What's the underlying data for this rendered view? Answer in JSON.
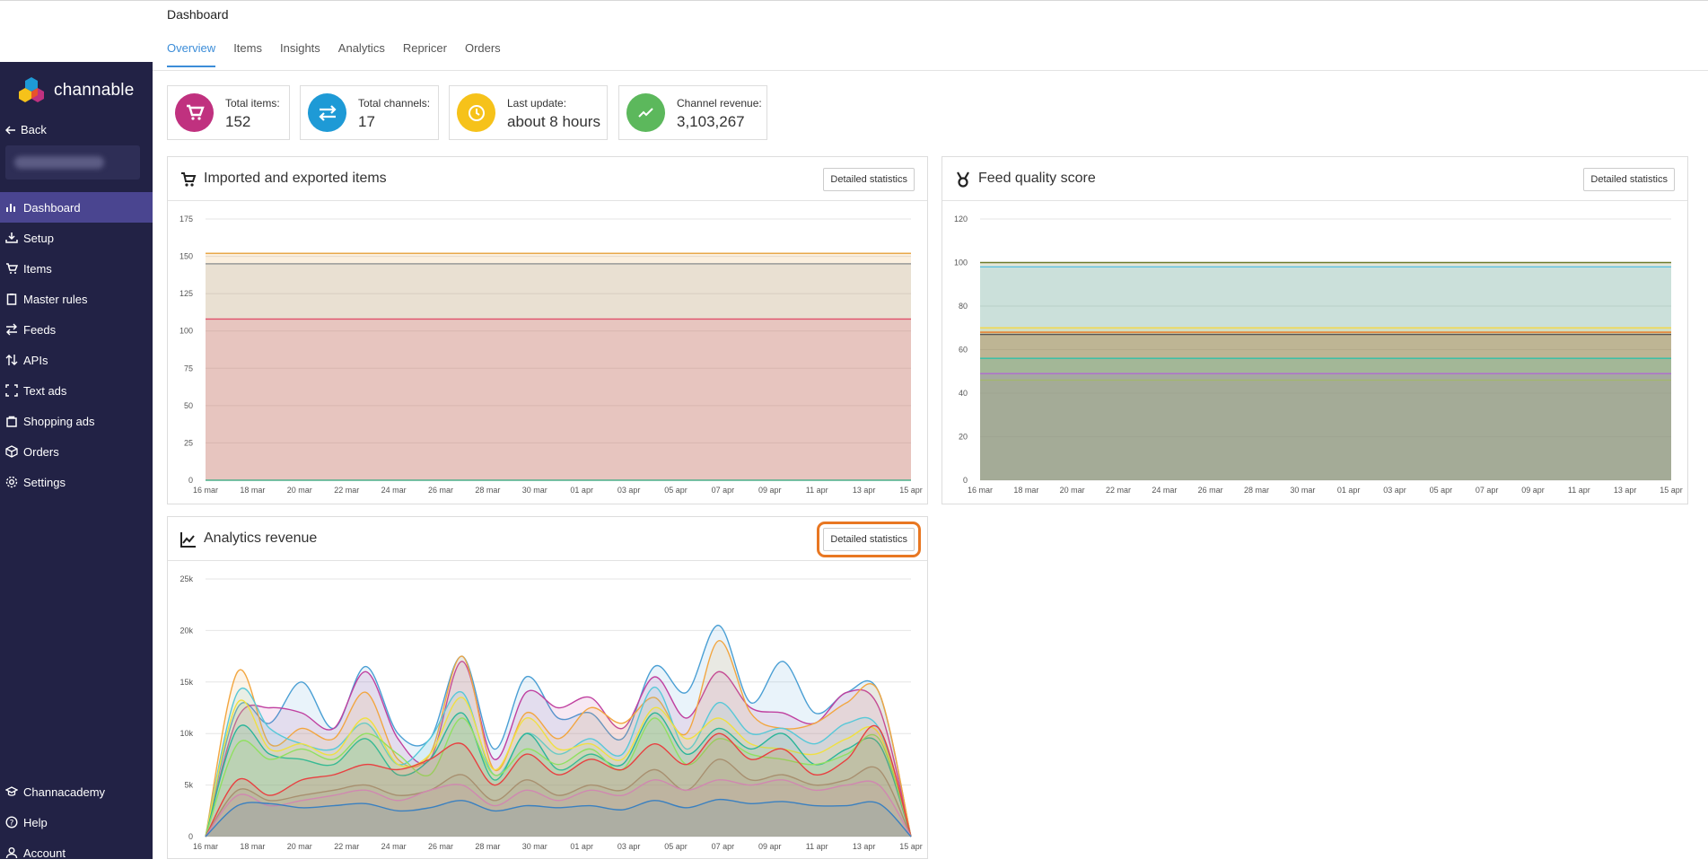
{
  "app": {
    "name": "channable"
  },
  "sidebar": {
    "back_label": "Back",
    "items": [
      {
        "label": "Dashboard",
        "icon": "bar-chart-icon",
        "active": true
      },
      {
        "label": "Setup",
        "icon": "download-tray-icon"
      },
      {
        "label": "Items",
        "icon": "cart-icon"
      },
      {
        "label": "Master rules",
        "icon": "clipboard-icon"
      },
      {
        "label": "Feeds",
        "icon": "swap-arrows-icon"
      },
      {
        "label": "APIs",
        "icon": "up-down-arrows-icon"
      },
      {
        "label": "Text ads",
        "icon": "frame-icon"
      },
      {
        "label": "Shopping ads",
        "icon": "bag-icon"
      },
      {
        "label": "Orders",
        "icon": "box-icon"
      },
      {
        "label": "Settings",
        "icon": "gear-icon"
      }
    ],
    "bottom_items": [
      {
        "label": "Channacademy",
        "icon": "graduation-cap-icon"
      },
      {
        "label": "Help",
        "icon": "help-circle-icon"
      },
      {
        "label": "Account",
        "icon": "user-icon"
      }
    ]
  },
  "header": {
    "title": "Dashboard",
    "tabs": [
      {
        "label": "Overview",
        "active": true
      },
      {
        "label": "Items"
      },
      {
        "label": "Insights"
      },
      {
        "label": "Analytics"
      },
      {
        "label": "Repricer"
      },
      {
        "label": "Orders"
      }
    ]
  },
  "stats": [
    {
      "label": "Total items:",
      "value": "152",
      "color": "#c0317f",
      "icon": "cart-icon"
    },
    {
      "label": "Total channels:",
      "value": "17",
      "color": "#1e9ad6",
      "icon": "swap-arrows-icon"
    },
    {
      "label": "Last update:",
      "value": "about 8 hours",
      "color": "#f6c21a",
      "icon": "clock-icon"
    },
    {
      "label": "Channel revenue:",
      "value": "3,103,267",
      "color": "#5cb85c",
      "icon": "trend-line-icon"
    }
  ],
  "panels": {
    "imported": {
      "title": "Imported and exported items",
      "button": "Detailed statistics",
      "icon": "cart-icon"
    },
    "quality": {
      "title": "Feed quality score",
      "button": "Detailed statistics",
      "icon": "medal-icon"
    },
    "revenue": {
      "title": "Analytics revenue",
      "button": "Detailed statistics",
      "icon": "area-chart-icon"
    }
  },
  "chart_data": [
    {
      "type": "area",
      "ylim": [
        0,
        175
      ],
      "yticks": [
        "0",
        "25",
        "50",
        "75",
        "100",
        "125",
        "150",
        "175"
      ],
      "xticks": [
        "16 mar",
        "18 mar",
        "20 mar",
        "22 mar",
        "24 mar",
        "26 mar",
        "28 mar",
        "30 mar",
        "01 apr",
        "03 apr",
        "05 apr",
        "07 apr",
        "09 apr",
        "11 apr",
        "13 apr",
        "15 apr"
      ],
      "series": [
        {
          "value": 152,
          "color": "#e8a84a"
        },
        {
          "value": 145,
          "color": "#999999"
        },
        {
          "value": 108,
          "color": "#e0506a"
        },
        {
          "value": 0,
          "color": "#4caf8a"
        }
      ]
    },
    {
      "type": "area",
      "ylim": [
        0,
        120
      ],
      "yticks": [
        "0",
        "20",
        "40",
        "60",
        "80",
        "100",
        "120"
      ],
      "xticks": [
        "16 mar",
        "18 mar",
        "20 mar",
        "22 mar",
        "24 mar",
        "26 mar",
        "28 mar",
        "30 mar",
        "01 apr",
        "03 apr",
        "05 apr",
        "07 apr",
        "09 apr",
        "11 apr",
        "13 apr",
        "15 apr"
      ],
      "series": [
        {
          "value": 100,
          "color": "#6d7a2a"
        },
        {
          "value": 98,
          "color": "#5bc0de"
        },
        {
          "value": 70,
          "color": "#f2d94e"
        },
        {
          "value": 68,
          "color": "#e87722"
        },
        {
          "value": 67,
          "color": "#555555"
        },
        {
          "value": 56,
          "color": "#2fc0a8"
        },
        {
          "value": 49,
          "color": "#b06bd0"
        },
        {
          "value": 46,
          "color": "#a3b86c"
        }
      ]
    },
    {
      "type": "area",
      "ylim": [
        0,
        25000
      ],
      "yticks": [
        "0",
        "5k",
        "10k",
        "15k",
        "20k",
        "25k"
      ],
      "xticks": [
        "16 mar",
        "18 mar",
        "20 mar",
        "22 mar",
        "24 mar",
        "26 mar",
        "28 mar",
        "30 mar",
        "01 apr",
        "03 apr",
        "05 apr",
        "07 apr",
        "09 apr",
        "11 apr",
        "13 apr",
        "15 apr"
      ],
      "series": [
        {
          "color": "#4a9fd4",
          "values": [
            0,
            12500,
            11000,
            15000,
            10500,
            16500,
            10000,
            9500,
            17500,
            8500,
            15500,
            11500,
            12000,
            9500,
            16500,
            14000,
            20500,
            13000,
            17000,
            12000,
            14000,
            14000,
            0
          ]
        },
        {
          "color": "#c040a0",
          "values": [
            0,
            11500,
            12500,
            12000,
            10500,
            16000,
            9500,
            7500,
            17000,
            7500,
            14000,
            12500,
            13500,
            10500,
            15500,
            11500,
            16000,
            12500,
            12000,
            11000,
            14000,
            12500,
            0
          ]
        },
        {
          "color": "#f2a640",
          "values": [
            0,
            16000,
            9000,
            10500,
            9500,
            14000,
            7500,
            8000,
            17500,
            6500,
            12000,
            9500,
            12500,
            11000,
            13500,
            10000,
            19000,
            12000,
            10500,
            11000,
            13000,
            14000,
            0
          ]
        },
        {
          "color": "#58c8d8",
          "values": [
            0,
            14000,
            10500,
            9000,
            8500,
            11000,
            7000,
            9500,
            14000,
            6000,
            10000,
            8000,
            9500,
            8000,
            14500,
            8500,
            13000,
            10000,
            10500,
            9000,
            11000,
            10500,
            0
          ]
        },
        {
          "color": "#f0e040",
          "values": [
            0,
            13000,
            8500,
            9000,
            8000,
            11500,
            7000,
            8000,
            13500,
            6500,
            11500,
            8500,
            9000,
            7500,
            12500,
            9500,
            11500,
            9000,
            8500,
            8000,
            9500,
            10000,
            0
          ]
        },
        {
          "color": "#2bb59a",
          "values": [
            0,
            10500,
            8000,
            7500,
            7000,
            9500,
            6000,
            7500,
            12000,
            5500,
            10000,
            6500,
            8000,
            7000,
            12000,
            8000,
            10500,
            8500,
            10000,
            7000,
            8500,
            9000,
            0
          ]
        },
        {
          "color": "#90e060",
          "values": [
            0,
            9000,
            7500,
            8500,
            7500,
            10000,
            8000,
            6000,
            11500,
            6000,
            8500,
            7000,
            8500,
            6500,
            11500,
            7000,
            9500,
            8000,
            7500,
            7000,
            8000,
            9500,
            0
          ]
        },
        {
          "color": "#e84040",
          "values": [
            0,
            5500,
            4000,
            5500,
            6000,
            7000,
            6500,
            7500,
            9000,
            5000,
            8000,
            6000,
            7500,
            6500,
            9000,
            7000,
            10000,
            7500,
            8500,
            6000,
            7500,
            10500,
            0
          ]
        },
        {
          "color": "#a89070",
          "values": [
            0,
            4500,
            3500,
            4000,
            4500,
            5000,
            4000,
            4500,
            6000,
            3500,
            5500,
            4000,
            5000,
            4500,
            6500,
            4500,
            7500,
            5500,
            6000,
            5000,
            5500,
            6500,
            0
          ]
        },
        {
          "color": "#d088b0",
          "values": [
            0,
            4000,
            3000,
            3500,
            4000,
            4500,
            3500,
            4500,
            5000,
            3000,
            4500,
            3500,
            4500,
            4000,
            5500,
            4500,
            5500,
            5000,
            5500,
            4500,
            5000,
            5000,
            0
          ]
        },
        {
          "color": "#3a80c0",
          "values": [
            0,
            3000,
            3200,
            2800,
            3000,
            3200,
            2500,
            2800,
            3500,
            2500,
            3000,
            2800,
            3000,
            2600,
            3500,
            2800,
            3600,
            3200,
            3400,
            3000,
            3000,
            3200,
            0
          ]
        }
      ]
    }
  ]
}
